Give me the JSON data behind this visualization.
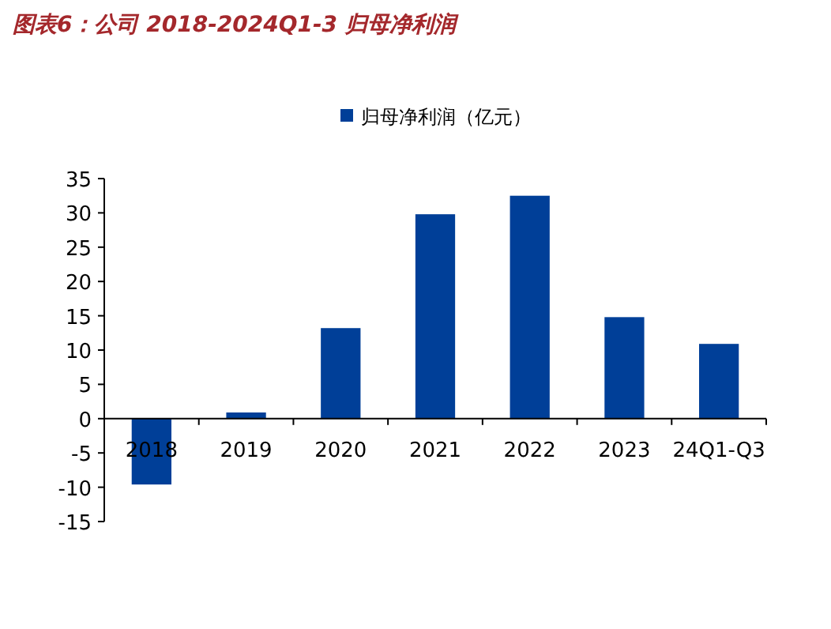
{
  "chart_data": {
    "type": "bar",
    "title": "图表6：公司 2018-2024Q1-3 归母净利润",
    "categories": [
      "2018",
      "2019",
      "2020",
      "2021",
      "2022",
      "2023",
      "24Q1-Q3"
    ],
    "series": [
      {
        "name": "归母净利润（亿元）",
        "color": "#003f98",
        "values": [
          -9.6,
          0.9,
          13.2,
          29.8,
          32.5,
          14.8,
          10.9
        ]
      }
    ],
    "ylim": [
      -15,
      35
    ],
    "yticks": [
      -15,
      -10,
      -5,
      0,
      5,
      10,
      15,
      20,
      25,
      30,
      35
    ],
    "grid": false,
    "legend": "top"
  }
}
